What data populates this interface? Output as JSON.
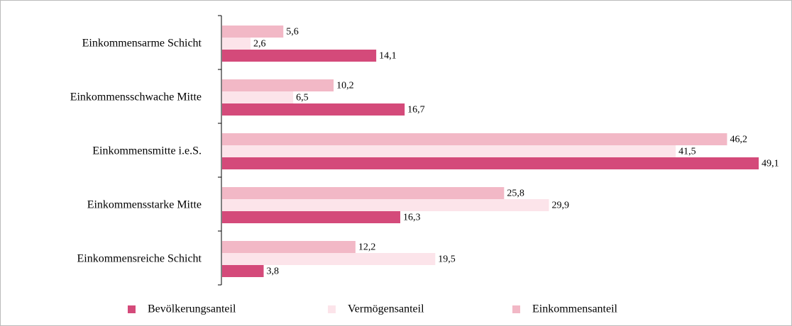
{
  "chart_data": {
    "type": "bar",
    "orientation": "horizontal",
    "categories": [
      "Einkommensarme Schicht",
      "Einkommensschwache Mitte",
      "Einkommensmitte i.e.S.",
      "Einkommensstarke Mitte",
      "Einkommensreiche Schicht"
    ],
    "series": [
      {
        "name": "Bevölkerungsanteil",
        "color": "#d44a7a",
        "values": [
          14.1,
          16.7,
          49.1,
          16.3,
          3.8
        ],
        "value_labels": [
          "14,1",
          "16,7",
          "49,1",
          "16,3",
          "3,8"
        ]
      },
      {
        "name": "Vermögensanteil",
        "color": "#fce4ea",
        "values": [
          2.6,
          6.5,
          41.5,
          29.9,
          19.5
        ],
        "value_labels": [
          "2,6",
          "6,5",
          "41,5",
          "29,9",
          "19,5"
        ]
      },
      {
        "name": "Einkommensanteil",
        "color": "#f2b8c6",
        "values": [
          5.6,
          10.2,
          46.2,
          25.8,
          12.2
        ],
        "value_labels": [
          "5,6",
          "10,2",
          "46,2",
          "25,8",
          "12,2"
        ]
      }
    ],
    "legend": "bottom"
  }
}
